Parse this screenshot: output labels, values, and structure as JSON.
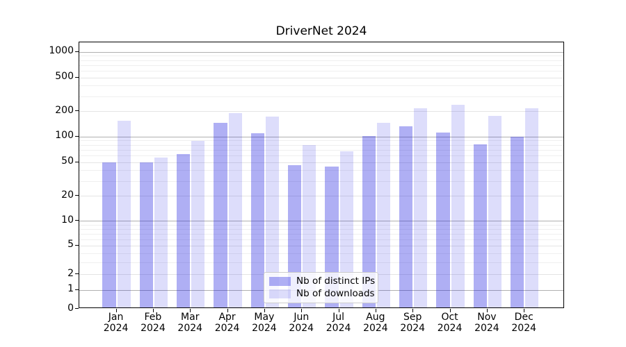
{
  "title": "DriverNet 2024",
  "legend": {
    "items": [
      {
        "label": "Nb of distinct IPs",
        "color": "rgba(20,20,224,0.34)"
      },
      {
        "label": "Nb of downloads",
        "color": "rgba(20,20,224,0.145)"
      }
    ]
  },
  "chart_data": {
    "type": "bar",
    "title": "DriverNet 2024",
    "yscale": "asinh",
    "grid": "horizontal",
    "legend_position": "lower center",
    "categories": [
      "Jan 2024",
      "Feb 2024",
      "Mar 2024",
      "Apr 2024",
      "May 2024",
      "Jun 2024",
      "Jul 2024",
      "Aug 2024",
      "Sep 2024",
      "Oct 2024",
      "Nov 2024",
      "Dec 2024"
    ],
    "series": [
      {
        "name": "Nb of distinct IPs",
        "color": "rgba(20,20,224,0.34)",
        "values": [
          50,
          50,
          62,
          145,
          109,
          46,
          44,
          102,
          133,
          112,
          81,
          100
        ]
      },
      {
        "name": "Nb of downloads",
        "color": "rgba(20,20,224,0.145)",
        "values": [
          153,
          57,
          89,
          190,
          173,
          80,
          67,
          145,
          215,
          236,
          177,
          218
        ]
      }
    ],
    "y_ticks": [
      0,
      1,
      2,
      5,
      10,
      20,
      50,
      100,
      200,
      500,
      1000
    ],
    "y_minor_ticks": [
      3,
      4,
      6,
      7,
      8,
      9,
      30,
      40,
      60,
      70,
      80,
      90,
      300,
      400,
      600,
      700,
      800,
      900
    ],
    "ylim": [
      0,
      1300
    ]
  }
}
